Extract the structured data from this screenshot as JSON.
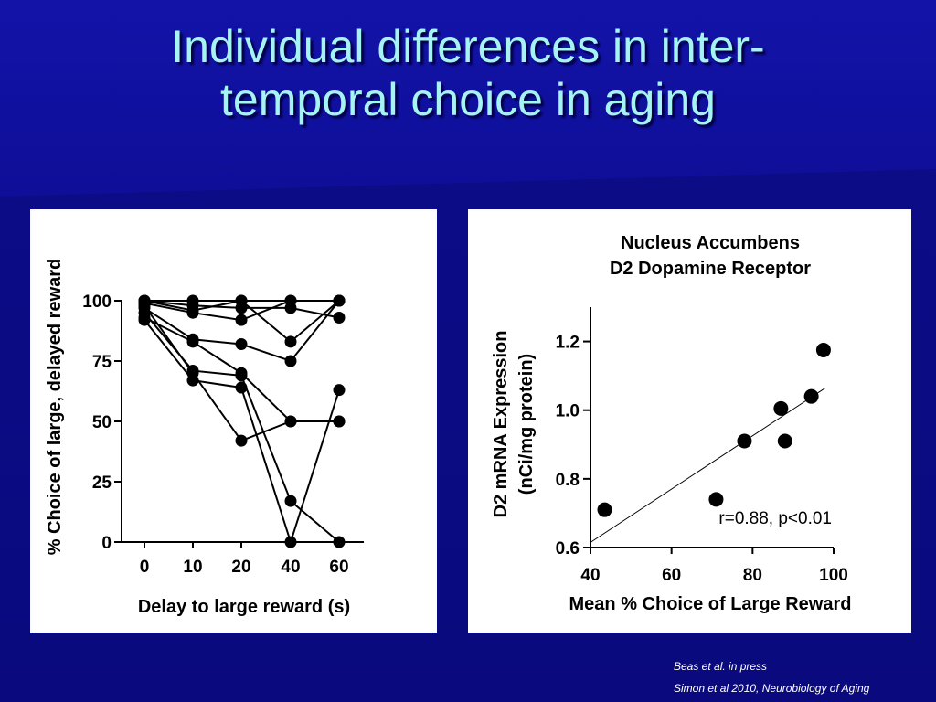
{
  "slide": {
    "title_line1": "Individual differences in inter-",
    "title_line2": "temporal choice in aging",
    "citations": [
      "Beas et al. in press",
      "Simon et al 2010, Neurobiology of Aging"
    ]
  },
  "colors": {
    "background": "#0a0a80",
    "title": "#a6f3f3",
    "panel": "#ffffff",
    "ink": "#000000"
  },
  "chart_data": [
    {
      "type": "line",
      "title": "",
      "xlabel": "Delay to large reward (s)",
      "ylabel": "% Choice of large, delayed reward",
      "x": [
        0,
        10,
        20,
        40,
        60
      ],
      "x_tick_labels": [
        "0",
        "10",
        "20",
        "40",
        "60"
      ],
      "ylim": [
        0,
        100
      ],
      "y_ticks": [
        0,
        25,
        50,
        75,
        100
      ],
      "grid": false,
      "series": [
        {
          "values": [
            100,
            100,
            100,
            100,
            100
          ]
        },
        {
          "values": [
            100,
            98,
            97,
            97,
            93
          ]
        },
        {
          "values": [
            100,
            96,
            100,
            83,
            100
          ]
        },
        {
          "values": [
            99,
            95,
            92,
            100,
            100
          ]
        },
        {
          "values": [
            97,
            84,
            82,
            75,
            100
          ]
        },
        {
          "values": [
            93,
            83,
            70,
            50,
            50
          ]
        },
        {
          "values": [
            95,
            71,
            69,
            17,
            0
          ]
        },
        {
          "values": [
            92,
            67,
            64,
            0,
            63
          ]
        },
        {
          "values": [
            98,
            70,
            42,
            50,
            50
          ]
        }
      ]
    },
    {
      "type": "scatter",
      "title": "Nucleus Accumbens",
      "subtitle": "D2 Dopamine Receptor",
      "xlabel": "Mean % Choice of Large Reward",
      "ylabel": "D2 mRNA Expression",
      "ylabel2": "(nCi/mg protein)",
      "xlim": [
        40,
        100
      ],
      "ylim": [
        0.6,
        1.3
      ],
      "x_ticks": [
        40,
        60,
        80,
        100
      ],
      "y_ticks": [
        0.6,
        0.8,
        1.0,
        1.2
      ],
      "x_tick_labels": [
        "40",
        "60",
        "80",
        "100"
      ],
      "y_tick_labels": [
        "0.6",
        "0.8",
        "1.0",
        "1.2"
      ],
      "grid": false,
      "points": [
        {
          "x": 43.5,
          "y": 0.71
        },
        {
          "x": 71,
          "y": 0.74
        },
        {
          "x": 78,
          "y": 0.91
        },
        {
          "x": 87,
          "y": 1.005
        },
        {
          "x": 88,
          "y": 0.91
        },
        {
          "x": 94.5,
          "y": 1.04
        },
        {
          "x": 97.5,
          "y": 1.175
        }
      ],
      "fit_line": {
        "x": [
          40,
          98
        ],
        "y": [
          0.615,
          1.065
        ]
      },
      "annotation": "r=0.88, p<0.01"
    }
  ]
}
